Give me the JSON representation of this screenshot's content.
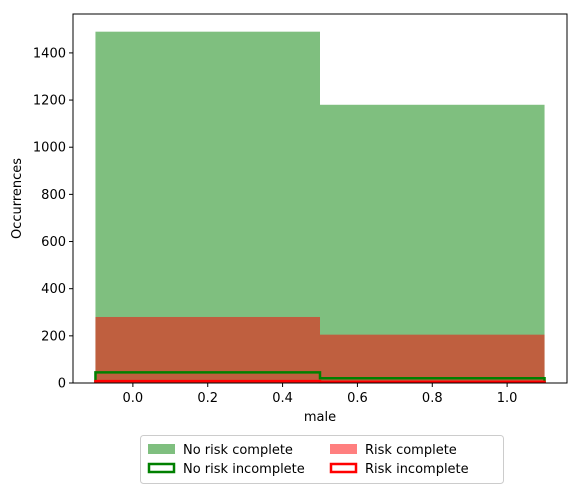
{
  "chart_data": {
    "type": "bar",
    "subtype": "histogram-overlay",
    "xlabel": "male",
    "ylabel": "Occurrences",
    "xlim": [
      -0.16,
      1.16
    ],
    "ylim": [
      0,
      1565
    ],
    "xticks": [
      "0.0",
      "0.2",
      "0.4",
      "0.6",
      "0.8",
      "1.0"
    ],
    "yticks": [
      "0",
      "200",
      "400",
      "600",
      "800",
      "1000",
      "1200",
      "1400"
    ],
    "bins": [
      [
        -0.1,
        0.5
      ],
      [
        0.5,
        1.1
      ]
    ],
    "series": [
      {
        "name": "No risk complete",
        "style": "filled",
        "color": "#008000",
        "values": [
          1490,
          1180
        ]
      },
      {
        "name": "Risk complete",
        "style": "filled",
        "color": "#ff0000",
        "values": [
          280,
          205
        ]
      },
      {
        "name": "No risk incomplete",
        "style": "step",
        "color": "#008000",
        "values": [
          45,
          20
        ]
      },
      {
        "name": "Risk incomplete",
        "style": "step",
        "color": "#ff0000",
        "values": [
          8,
          5
        ]
      }
    ],
    "grid": false,
    "legend_position": "bottom-center"
  }
}
